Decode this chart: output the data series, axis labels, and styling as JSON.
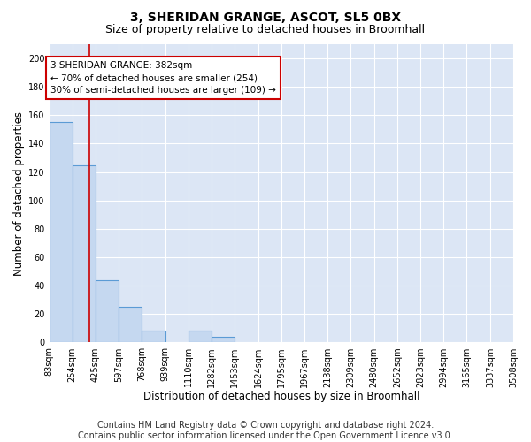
{
  "title1": "3, SHERIDAN GRANGE, ASCOT, SL5 0BX",
  "title2": "Size of property relative to detached houses in Broomhall",
  "xlabel": "Distribution of detached houses by size in Broomhall",
  "ylabel": "Number of detached properties",
  "bar_values": [
    155,
    125,
    44,
    25,
    8,
    0,
    8,
    4,
    0,
    0,
    0,
    0,
    0,
    0,
    0,
    0,
    0,
    0,
    0,
    0
  ],
  "bin_edges": [
    83,
    254,
    425,
    597,
    768,
    939,
    1110,
    1282,
    1453,
    1624,
    1795,
    1967,
    2138,
    2309,
    2480,
    2652,
    2823,
    2994,
    3165,
    3337,
    3508
  ],
  "tick_labels": [
    "83sqm",
    "254sqm",
    "425sqm",
    "597sqm",
    "768sqm",
    "939sqm",
    "1110sqm",
    "1282sqm",
    "1453sqm",
    "1624sqm",
    "1795sqm",
    "1967sqm",
    "2138sqm",
    "2309sqm",
    "2480sqm",
    "2652sqm",
    "2823sqm",
    "2994sqm",
    "3165sqm",
    "3337sqm",
    "3508sqm"
  ],
  "bar_color": "#c5d8f0",
  "bar_edge_color": "#5b9bd5",
  "vline_x": 382,
  "vline_color": "#cc0000",
  "annotation_text": "3 SHERIDAN GRANGE: 382sqm\n← 70% of detached houses are smaller (254)\n30% of semi-detached houses are larger (109) →",
  "annotation_box_color": "#ffffff",
  "annotation_box_edge": "#cc0000",
  "ylim": [
    0,
    210
  ],
  "yticks": [
    0,
    20,
    40,
    60,
    80,
    100,
    120,
    140,
    160,
    180,
    200
  ],
  "bg_color": "#dce6f5",
  "fig_bg_color": "#ffffff",
  "footer_text": "Contains HM Land Registry data © Crown copyright and database right 2024.\nContains public sector information licensed under the Open Government Licence v3.0.",
  "grid_color": "#ffffff",
  "title1_fontsize": 10,
  "title2_fontsize": 9,
  "xlabel_fontsize": 8.5,
  "ylabel_fontsize": 8.5,
  "tick_fontsize": 7,
  "footer_fontsize": 7,
  "annot_fontsize": 7.5
}
